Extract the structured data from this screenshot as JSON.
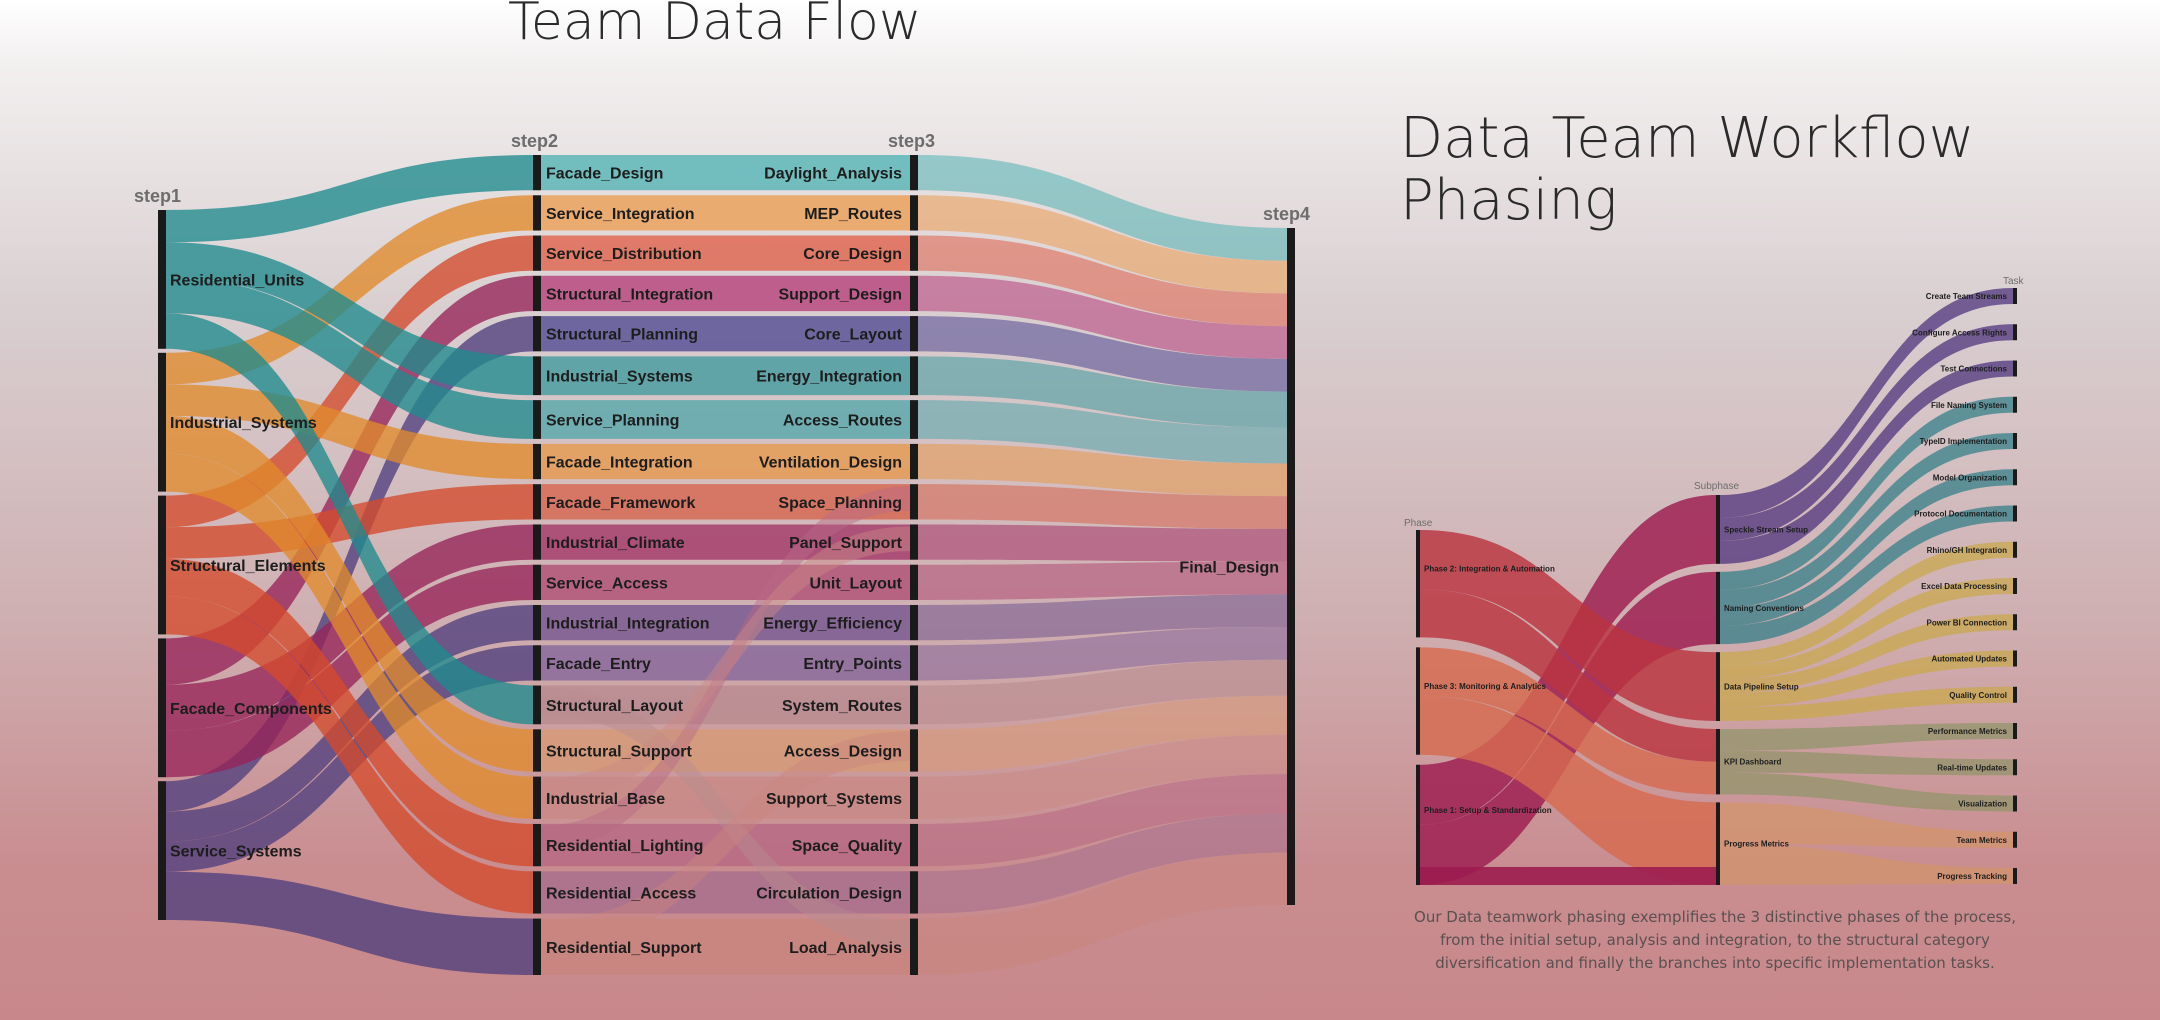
{
  "left": {
    "title": "Team Data Flow",
    "steps": [
      "step1",
      "step2",
      "step3",
      "step4"
    ],
    "step1": [
      {
        "name": "Residential_Units",
        "color": "#1f8a8d"
      },
      {
        "name": "Industrial_Systems",
        "color": "#e08a2b"
      },
      {
        "name": "Structural_Elements",
        "color": "#d44a2c"
      },
      {
        "name": "Facade_Components",
        "color": "#962459"
      },
      {
        "name": "Service_Systems",
        "color": "#4f3f7e"
      }
    ],
    "step2": [
      {
        "name": "Facade_Design",
        "color": "#5db6b6"
      },
      {
        "name": "Service_Integration",
        "color": "#eba25e"
      },
      {
        "name": "Service_Distribution",
        "color": "#e06a55"
      },
      {
        "name": "Structural_Integration",
        "color": "#b94a80"
      },
      {
        "name": "Structural_Planning",
        "color": "#5b5497"
      },
      {
        "name": "Industrial_Systems",
        "color": "#4b9ea2"
      },
      {
        "name": "Service_Planning",
        "color": "#5ea9ad"
      },
      {
        "name": "Facade_Integration",
        "color": "#e49b55"
      },
      {
        "name": "Facade_Framework",
        "color": "#d66a55"
      },
      {
        "name": "Industrial_Climate",
        "color": "#a63e6c"
      },
      {
        "name": "Service_Access",
        "color": "#b25378"
      },
      {
        "name": "Industrial_Integration",
        "color": "#7a5b91"
      },
      {
        "name": "Facade_Entry",
        "color": "#8a6b9b"
      },
      {
        "name": "Structural_Layout",
        "color": "#b98c90"
      },
      {
        "name": "Structural_Support",
        "color": "#d59a78"
      },
      {
        "name": "Industrial_Base",
        "color": "#c98a86"
      },
      {
        "name": "Residential_Lighting",
        "color": "#b76a84"
      },
      {
        "name": "Residential_Access",
        "color": "#a9708d"
      },
      {
        "name": "Residential_Support",
        "color": "#c9857f"
      }
    ],
    "step3": [
      "Daylight_Analysis",
      "MEP_Routes",
      "Core_Design",
      "Support_Design",
      "Core_Layout",
      "Energy_Integration",
      "Access_Routes",
      "Ventilation_Design",
      "Space_Planning",
      "Panel_Support",
      "Unit_Layout",
      "Energy_Efficiency",
      "Entry_Points",
      "System_Routes",
      "Access_Design",
      "Support_Systems",
      "Space_Quality",
      "Circulation_Design",
      "Load_Analysis"
    ],
    "step4": [
      "Final_Design"
    ]
  },
  "right": {
    "title": "Data Team Workflow Phasing",
    "heads": {
      "phase": "Phase",
      "subphase": "Subphase",
      "task": "Task"
    },
    "phases": [
      {
        "name": "Phase 2: Integration & Automation",
        "color": "#b9343f"
      },
      {
        "name": "Phase 3: Monitoring & Analytics",
        "color": "#d56a4f"
      },
      {
        "name": "Phase 1: Setup & Standardization",
        "color": "#9c1c4f"
      }
    ],
    "subphases": [
      {
        "name": "Speckle Stream Setup",
        "color": "#4a2f7a"
      },
      {
        "name": "Naming Conventions",
        "color": "#2f7d86"
      },
      {
        "name": "Data Pipeline Setup",
        "color": "#c9a84a"
      },
      {
        "name": "KPI Dashboard",
        "color": "#8f9468"
      },
      {
        "name": "Progress Metrics",
        "color": "#d3946a"
      }
    ],
    "tasks": [
      "Create Team Streams",
      "Configure Access Rights",
      "Test Connections",
      "File Naming System",
      "TypeID Implementation",
      "Model Organization",
      "Protocol Documentation",
      "Rhino/GH Integration",
      "Excel Data Processing",
      "Power BI Connection",
      "Automated Updates",
      "Quality Control",
      "Performance Metrics",
      "Real-time Updates",
      "Visualization",
      "Team Metrics",
      "Progress Tracking"
    ],
    "caption": "Our Data teamwork phasing exemplifies the 3 distinctive phases of the process, from the initial setup, analysis and integration, to the structural category diversification and finally the branches into specific implementation tasks."
  }
}
